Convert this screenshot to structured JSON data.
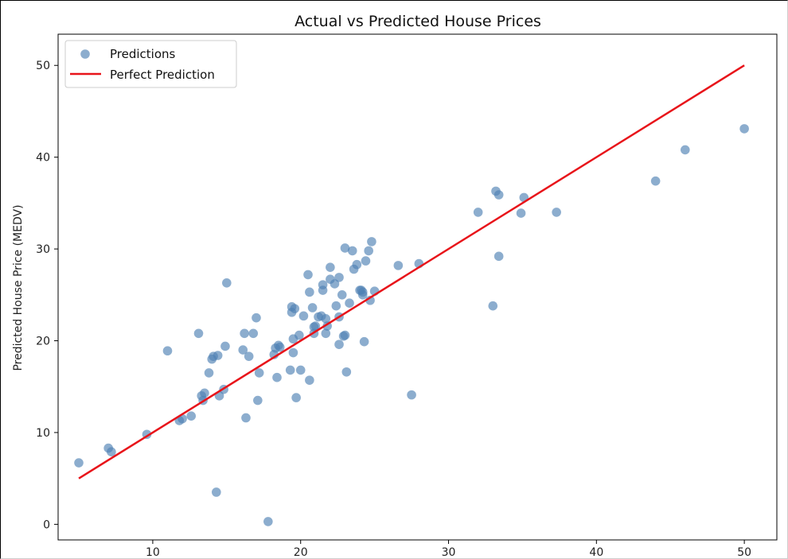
{
  "chart_data": {
    "type": "scatter",
    "title": "Actual vs Predicted House Prices",
    "xlabel": "",
    "ylabel": "Predicted House Price (MEDV)",
    "xlim": [
      3.6,
      52.2
    ],
    "ylim": [
      -1.7,
      53.4
    ],
    "x_ticks": [
      10,
      20,
      30,
      40,
      50
    ],
    "y_ticks": [
      0,
      10,
      20,
      30,
      40,
      50
    ],
    "grid": false,
    "legend_position": "top-left",
    "series": [
      {
        "name": "Predictions",
        "kind": "scatter",
        "color": "#4f81b3",
        "points": [
          [
            5.0,
            6.7
          ],
          [
            7.0,
            8.3
          ],
          [
            7.2,
            7.9
          ],
          [
            9.6,
            9.8
          ],
          [
            11.0,
            18.9
          ],
          [
            11.8,
            11.3
          ],
          [
            12.0,
            11.5
          ],
          [
            12.6,
            11.8
          ],
          [
            13.1,
            20.8
          ],
          [
            13.3,
            14.0
          ],
          [
            13.4,
            13.5
          ],
          [
            13.5,
            14.3
          ],
          [
            13.8,
            16.5
          ],
          [
            14.0,
            18.0
          ],
          [
            14.1,
            18.3
          ],
          [
            14.4,
            18.4
          ],
          [
            14.5,
            14.0
          ],
          [
            14.3,
            3.5
          ],
          [
            14.8,
            14.7
          ],
          [
            14.9,
            19.4
          ],
          [
            15.0,
            26.3
          ],
          [
            16.1,
            19.0
          ],
          [
            16.2,
            20.8
          ],
          [
            16.3,
            11.6
          ],
          [
            16.5,
            18.3
          ],
          [
            16.8,
            20.8
          ],
          [
            17.0,
            22.5
          ],
          [
            17.1,
            13.5
          ],
          [
            17.2,
            16.5
          ],
          [
            17.8,
            0.3
          ],
          [
            18.2,
            18.5
          ],
          [
            18.3,
            19.2
          ],
          [
            18.4,
            16.0
          ],
          [
            18.5,
            19.5
          ],
          [
            18.6,
            19.3
          ],
          [
            19.3,
            16.8
          ],
          [
            19.4,
            23.7
          ],
          [
            19.4,
            23.1
          ],
          [
            19.5,
            18.7
          ],
          [
            19.5,
            20.2
          ],
          [
            19.6,
            23.5
          ],
          [
            19.7,
            13.8
          ],
          [
            19.9,
            20.6
          ],
          [
            20.0,
            16.8
          ],
          [
            20.2,
            22.7
          ],
          [
            20.5,
            27.2
          ],
          [
            20.6,
            25.3
          ],
          [
            20.6,
            15.7
          ],
          [
            20.8,
            23.6
          ],
          [
            20.9,
            20.8
          ],
          [
            20.9,
            21.5
          ],
          [
            21.0,
            21.6
          ],
          [
            21.2,
            22.6
          ],
          [
            21.4,
            22.7
          ],
          [
            21.5,
            25.5
          ],
          [
            21.5,
            26.1
          ],
          [
            21.7,
            20.8
          ],
          [
            21.7,
            22.4
          ],
          [
            21.8,
            21.6
          ],
          [
            22.0,
            28.0
          ],
          [
            22.0,
            26.7
          ],
          [
            22.3,
            26.2
          ],
          [
            22.4,
            23.8
          ],
          [
            22.6,
            19.6
          ],
          [
            22.6,
            22.6
          ],
          [
            22.6,
            26.9
          ],
          [
            22.8,
            25.0
          ],
          [
            22.9,
            20.5
          ],
          [
            23.0,
            30.1
          ],
          [
            23.0,
            20.6
          ],
          [
            23.1,
            16.6
          ],
          [
            23.3,
            24.1
          ],
          [
            23.5,
            29.8
          ],
          [
            23.6,
            27.8
          ],
          [
            23.8,
            28.3
          ],
          [
            24.0,
            25.5
          ],
          [
            24.1,
            25.5
          ],
          [
            24.2,
            25.3
          ],
          [
            24.2,
            25.0
          ],
          [
            24.3,
            19.9
          ],
          [
            24.4,
            28.7
          ],
          [
            24.6,
            29.8
          ],
          [
            24.7,
            24.4
          ],
          [
            24.8,
            30.8
          ],
          [
            25.0,
            25.4
          ],
          [
            26.6,
            28.2
          ],
          [
            27.5,
            14.1
          ],
          [
            28.0,
            28.4
          ],
          [
            32.0,
            34.0
          ],
          [
            33.0,
            23.8
          ],
          [
            33.2,
            36.3
          ],
          [
            33.4,
            35.9
          ],
          [
            33.4,
            29.2
          ],
          [
            34.9,
            33.9
          ],
          [
            35.1,
            35.6
          ],
          [
            37.3,
            34.0
          ],
          [
            44.0,
            37.4
          ],
          [
            46.0,
            40.8
          ],
          [
            50.0,
            43.1
          ]
        ]
      },
      {
        "name": "Perfect Prediction",
        "kind": "line",
        "color": "#e8141a",
        "points": [
          [
            5.0,
            5.0
          ],
          [
            50.0,
            50.0
          ]
        ]
      }
    ]
  }
}
